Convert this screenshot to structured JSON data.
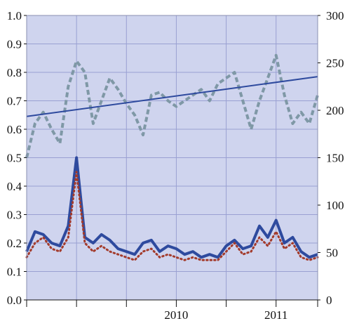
{
  "chart_data": {
    "type": "line",
    "title": "",
    "xlabel": "",
    "ylabel": "",
    "y2label": "",
    "grid": true,
    "legend": "none",
    "x_axis": {
      "type": "time",
      "range": [
        "2009-01",
        "2011-12"
      ],
      "tick_positions": [
        "2009-01",
        "2009-07",
        "2010-01",
        "2010-07",
        "2011-01",
        "2011-07"
      ],
      "labels": [
        {
          "text": "2010",
          "at": "2010-01"
        },
        {
          "text": "2011",
          "at": "2011-01"
        }
      ]
    },
    "y_left": {
      "range": [
        0,
        1.0
      ],
      "ticks": [
        "0.0",
        "0.1",
        "0.2",
        "0.3",
        "0.4",
        "0.5",
        "0.6",
        "0.7",
        "0.8",
        "0.9",
        "1.0"
      ]
    },
    "y_right": {
      "range": [
        0,
        300
      ],
      "ticks": [
        "0",
        "50",
        "100",
        "150",
        "200",
        "250",
        "300"
      ]
    },
    "x_time_values": [
      "2009-01",
      "2009-02",
      "2009-03",
      "2009-04",
      "2009-05",
      "2009-06",
      "2009-07",
      "2009-08",
      "2009-09",
      "2009-10",
      "2009-11",
      "2009-12",
      "2010-01",
      "2010-02",
      "2010-03",
      "2010-04",
      "2010-05",
      "2010-06",
      "2010-07",
      "2010-08",
      "2010-09",
      "2010-10",
      "2010-11",
      "2010-12",
      "2011-01",
      "2011-02",
      "2011-03",
      "2011-04",
      "2011-05",
      "2011-06",
      "2011-07",
      "2011-08",
      "2011-09",
      "2011-10",
      "2011-11",
      "2011-12"
    ],
    "series": [
      {
        "axis": "left",
        "style": "dashed",
        "color": "#7f98a6",
        "values": [
          0.5,
          0.62,
          0.66,
          0.6,
          0.55,
          0.75,
          0.84,
          0.8,
          0.62,
          0.7,
          0.78,
          0.74,
          0.69,
          0.65,
          0.58,
          0.72,
          0.73,
          0.7,
          0.68,
          0.7,
          0.72,
          0.74,
          0.7,
          0.76,
          0.78,
          0.8,
          0.7,
          0.6,
          0.7,
          0.78,
          0.86,
          0.72,
          0.62,
          0.66,
          0.62,
          0.72
        ]
      },
      {
        "axis": "left",
        "style": "solid",
        "color": "#2e4a9e",
        "values": [
          0.17,
          0.24,
          0.23,
          0.2,
          0.19,
          0.26,
          0.5,
          0.22,
          0.2,
          0.23,
          0.21,
          0.18,
          0.17,
          0.16,
          0.2,
          0.21,
          0.17,
          0.19,
          0.18,
          0.16,
          0.17,
          0.15,
          0.16,
          0.15,
          0.19,
          0.21,
          0.18,
          0.19,
          0.26,
          0.22,
          0.28,
          0.2,
          0.22,
          0.17,
          0.15,
          0.16
        ]
      },
      {
        "axis": "left",
        "style": "dotted",
        "color": "#a33b2c",
        "values": [
          0.15,
          0.2,
          0.22,
          0.18,
          0.17,
          0.22,
          0.45,
          0.2,
          0.17,
          0.19,
          0.17,
          0.16,
          0.15,
          0.14,
          0.17,
          0.18,
          0.15,
          0.16,
          0.15,
          0.14,
          0.15,
          0.14,
          0.14,
          0.14,
          0.17,
          0.2,
          0.16,
          0.17,
          0.22,
          0.19,
          0.24,
          0.18,
          0.2,
          0.15,
          0.14,
          0.15
        ]
      },
      {
        "axis": "left",
        "style": "trend",
        "color": "#2e4a9e",
        "values": [
          0.645,
          0.785
        ]
      }
    ]
  }
}
